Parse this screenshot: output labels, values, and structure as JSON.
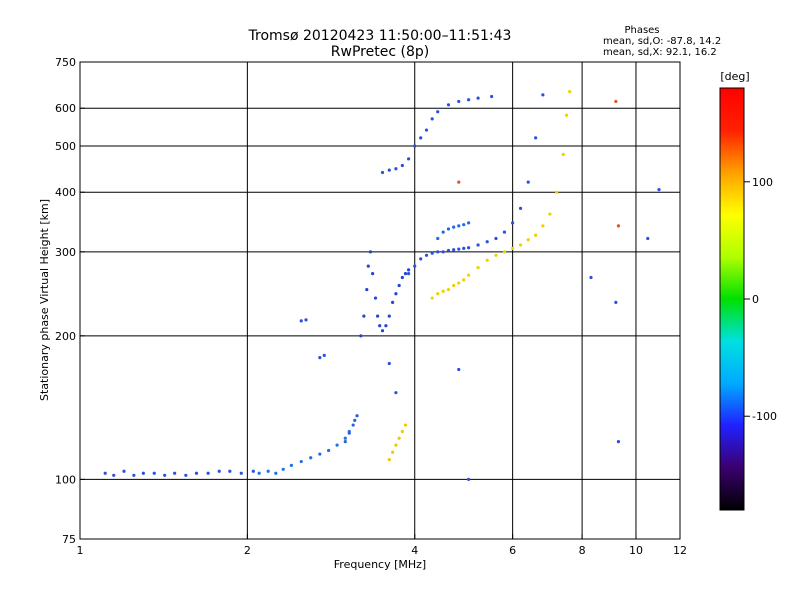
{
  "chart_data": {
    "type": "scatter",
    "title": "Tromsø 20120423 11:50:00–11:51:43",
    "subtitle": "RwPretec (8p)",
    "xlabel": "Frequency [MHz]",
    "ylabel": "Stationary phase Virtual Height [km]",
    "x_scale": "log",
    "y_scale": "log",
    "xlim": [
      1,
      12
    ],
    "ylim": [
      75,
      750
    ],
    "x_ticks": [
      {
        "value": 1,
        "label": "1"
      },
      {
        "value": 2,
        "label": "2"
      },
      {
        "value": 4,
        "label": "4"
      },
      {
        "value": 6,
        "label": "6"
      },
      {
        "value": 8,
        "label": "8"
      },
      {
        "value": 10,
        "label": "10"
      },
      {
        "value": 12,
        "label": "12"
      }
    ],
    "x_grid": [
      2,
      4,
      6,
      8,
      10
    ],
    "y_ticks": [
      {
        "value": 75,
        "label": "75"
      },
      {
        "value": 100,
        "label": "100"
      },
      {
        "value": 200,
        "label": "200"
      },
      {
        "value": 300,
        "label": "300"
      },
      {
        "value": 400,
        "label": "400"
      },
      {
        "value": 500,
        "label": "500"
      },
      {
        "value": 600,
        "label": "600"
      },
      {
        "value": 750,
        "label": "750"
      }
    ],
    "y_grid": [
      100,
      200,
      300,
      400,
      500,
      600
    ],
    "grid": true,
    "legend": {
      "title": "Phases",
      "lines": [
        "mean, sd,O: -87.8, 14.2",
        "mean, sd,X:  92.1, 16.2"
      ],
      "placement": "top-right"
    },
    "colorbar": {
      "label": "[deg]",
      "range": [
        -180,
        180
      ],
      "ticks": [
        {
          "value": 100,
          "label": "100"
        },
        {
          "value": 0,
          "label": "0"
        },
        {
          "value": -100,
          "label": "-100"
        }
      ],
      "stops": [
        "#000000",
        "#3b006e",
        "#2020ff",
        "#00aaff",
        "#00e0e0",
        "#00e000",
        "#b0ff00",
        "#ffff00",
        "#ffa000",
        "#ff2000",
        "#ff0000"
      ]
    },
    "series": [
      {
        "color": "#2a50e0",
        "phase": -100,
        "x": [
          1.11,
          1.15,
          1.2,
          1.25,
          1.3,
          1.36,
          1.42,
          1.48,
          1.55,
          1.62,
          1.7,
          1.78,
          1.86,
          1.95,
          2.05
        ],
        "y": [
          103,
          102,
          104,
          102,
          103,
          103,
          102,
          103,
          102,
          103,
          103,
          104,
          104,
          103,
          104
        ]
      },
      {
        "color": "#1e70e8",
        "phase": -95,
        "x": [
          2.1,
          2.18,
          2.25,
          2.32,
          2.4,
          2.5,
          2.6,
          2.7,
          2.8,
          2.9,
          3.0,
          3.05
        ],
        "y": [
          103,
          104,
          103,
          105,
          107,
          109,
          111,
          113,
          115,
          118,
          122,
          126
        ]
      },
      {
        "color": "#2a60e0",
        "phase": -98,
        "x": [
          3.0,
          3.05,
          3.1,
          3.12,
          3.15
        ],
        "y": [
          120,
          125,
          130,
          133,
          136
        ]
      },
      {
        "color": "#2244d8",
        "phase": -105,
        "x": [
          3.2,
          3.24,
          3.28,
          3.3,
          3.33,
          3.36,
          3.4,
          3.43,
          3.46,
          3.5,
          3.55,
          3.6,
          3.65,
          3.7,
          3.75,
          3.8,
          3.85,
          3.9
        ],
        "y": [
          200,
          220,
          250,
          280,
          300,
          270,
          240,
          220,
          210,
          205,
          210,
          220,
          235,
          245,
          255,
          265,
          270,
          275
        ]
      },
      {
        "color": "#2a50e0",
        "phase": -100,
        "x": [
          3.9,
          4.0,
          4.1,
          4.2,
          4.3,
          4.4,
          4.5,
          4.6,
          4.7,
          4.8,
          4.9,
          5.0,
          5.2,
          5.4,
          5.6,
          5.8,
          6.0,
          6.2,
          6.4,
          6.6,
          6.8
        ],
        "y": [
          270,
          280,
          290,
          295,
          298,
          300,
          300,
          302,
          303,
          304,
          305,
          306,
          310,
          315,
          320,
          330,
          345,
          370,
          420,
          520,
          640
        ]
      },
      {
        "color": "#1e6ae8",
        "phase": -96,
        "x": [
          4.4,
          4.5,
          4.6,
          4.7,
          4.8,
          4.9,
          5.0
        ],
        "y": [
          320,
          330,
          335,
          338,
          340,
          342,
          345
        ]
      },
      {
        "color": "#2a50e0",
        "phase": -100,
        "x": [
          3.5,
          3.6,
          3.7,
          3.8,
          3.9,
          4.0,
          4.1,
          4.2,
          4.3,
          4.4,
          4.6,
          4.8,
          5.0,
          5.2,
          5.5
        ],
        "y": [
          440,
          445,
          448,
          455,
          470,
          500,
          520,
          540,
          570,
          590,
          610,
          620,
          625,
          630,
          635
        ]
      },
      {
        "color": "#f0d000",
        "phase": 100,
        "x": [
          4.3,
          4.4,
          4.5,
          4.6,
          4.7,
          4.8,
          4.9,
          5.0,
          5.2,
          5.4,
          5.6,
          5.8,
          6.0,
          6.2,
          6.4,
          6.6,
          6.8,
          7.0,
          7.2,
          7.4,
          7.5,
          7.6
        ],
        "y": [
          240,
          245,
          248,
          250,
          255,
          258,
          262,
          268,
          278,
          288,
          295,
          300,
          305,
          310,
          318,
          325,
          340,
          360,
          400,
          480,
          580,
          650
        ]
      },
      {
        "color": "#f0c800",
        "phase": 98,
        "x": [
          3.6,
          3.65,
          3.7,
          3.75,
          3.8,
          3.85
        ],
        "y": [
          110,
          114,
          118,
          122,
          126,
          130
        ]
      },
      {
        "color": "#2a50e0",
        "phase": -102,
        "x": [
          2.5,
          2.55,
          2.7,
          2.75,
          3.6,
          3.7,
          4.8,
          5.0,
          8.3,
          9.2,
          9.3,
          10.5,
          11.0
        ],
        "y": [
          215,
          216,
          180,
          182,
          175,
          152,
          170,
          100,
          265,
          235,
          120,
          320,
          405
        ]
      },
      {
        "color": "#e05020",
        "phase": 150,
        "x": [
          9.2,
          9.3,
          4.8
        ],
        "y": [
          620,
          340,
          420
        ]
      }
    ]
  }
}
